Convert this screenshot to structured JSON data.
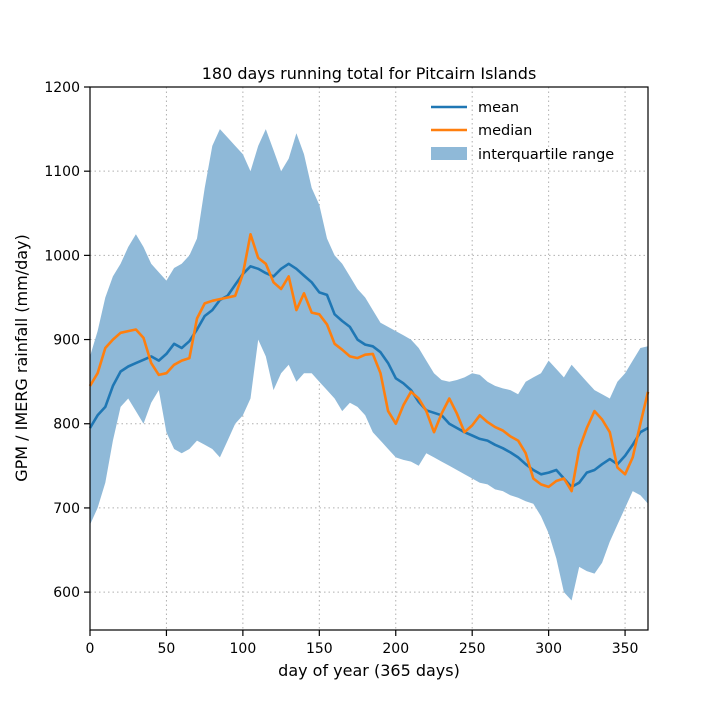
{
  "chart_data": {
    "type": "line",
    "title": "180 days running total for Pitcairn Islands",
    "xlabel": "day of year (365 days)",
    "ylabel": "GPM / IMERG rainfall (mm/day)",
    "xlim": [
      0,
      365
    ],
    "ylim": [
      555,
      1200
    ],
    "xticks": [
      0,
      50,
      100,
      150,
      200,
      250,
      300,
      350
    ],
    "yticks": [
      600,
      700,
      800,
      900,
      1000,
      1100,
      1200
    ],
    "grid": true,
    "legend_position": "top-right",
    "colors": {
      "mean": "#1f77b4",
      "median": "#ff7f0e",
      "iqr": "#8fb9d8",
      "grid": "#b0b0b0"
    },
    "series": [
      {
        "name": "mean",
        "kind": "line",
        "x": [
          0,
          5,
          10,
          15,
          20,
          25,
          30,
          35,
          40,
          45,
          50,
          55,
          60,
          65,
          70,
          75,
          80,
          85,
          90,
          95,
          100,
          105,
          110,
          115,
          120,
          125,
          130,
          135,
          140,
          145,
          150,
          155,
          160,
          165,
          170,
          175,
          180,
          185,
          190,
          195,
          200,
          205,
          210,
          215,
          220,
          225,
          230,
          235,
          240,
          245,
          250,
          255,
          260,
          265,
          270,
          275,
          280,
          285,
          290,
          295,
          300,
          305,
          310,
          315,
          320,
          325,
          330,
          335,
          340,
          345,
          350,
          355,
          360,
          365
        ],
        "values": [
          795,
          810,
          820,
          845,
          862,
          868,
          872,
          876,
          880,
          875,
          883,
          895,
          890,
          898,
          912,
          928,
          935,
          947,
          952,
          965,
          978,
          987,
          984,
          979,
          975,
          984,
          990,
          984,
          976,
          968,
          956,
          953,
          930,
          922,
          915,
          900,
          894,
          892,
          885,
          872,
          854,
          848,
          840,
          826,
          816,
          813,
          810,
          800,
          795,
          790,
          786,
          782,
          780,
          775,
          771,
          766,
          760,
          752,
          745,
          740,
          742,
          745,
          735,
          725,
          730,
          742,
          745,
          752,
          758,
          752,
          762,
          775,
          790,
          795
        ]
      },
      {
        "name": "median",
        "kind": "line",
        "x": [
          0,
          5,
          10,
          15,
          20,
          25,
          30,
          35,
          40,
          45,
          50,
          55,
          60,
          65,
          70,
          75,
          80,
          85,
          90,
          95,
          100,
          105,
          110,
          115,
          120,
          125,
          130,
          135,
          140,
          145,
          150,
          155,
          160,
          165,
          170,
          175,
          180,
          185,
          190,
          195,
          200,
          205,
          210,
          215,
          220,
          225,
          230,
          235,
          240,
          245,
          250,
          255,
          260,
          265,
          270,
          275,
          280,
          285,
          290,
          295,
          300,
          305,
          310,
          315,
          320,
          325,
          330,
          335,
          340,
          345,
          350,
          355,
          360,
          365
        ],
        "values": [
          845,
          860,
          890,
          900,
          908,
          910,
          912,
          902,
          872,
          858,
          860,
          870,
          875,
          878,
          925,
          943,
          946,
          948,
          950,
          952,
          978,
          1025,
          997,
          990,
          968,
          960,
          975,
          935,
          955,
          932,
          930,
          918,
          895,
          888,
          880,
          878,
          882,
          883,
          860,
          815,
          800,
          822,
          838,
          830,
          815,
          790,
          812,
          830,
          812,
          790,
          798,
          810,
          802,
          796,
          792,
          785,
          780,
          765,
          735,
          728,
          725,
          732,
          735,
          720,
          770,
          795,
          815,
          805,
          790,
          748,
          740,
          760,
          800,
          838
        ]
      },
      {
        "name": "interquartile range",
        "kind": "band",
        "x": [
          0,
          5,
          10,
          15,
          20,
          25,
          30,
          35,
          40,
          45,
          50,
          55,
          60,
          65,
          70,
          75,
          80,
          85,
          90,
          95,
          100,
          105,
          110,
          115,
          120,
          125,
          130,
          135,
          140,
          145,
          150,
          155,
          160,
          165,
          170,
          175,
          180,
          185,
          190,
          195,
          200,
          205,
          210,
          215,
          220,
          225,
          230,
          235,
          240,
          245,
          250,
          255,
          260,
          265,
          270,
          275,
          280,
          285,
          290,
          295,
          300,
          305,
          310,
          315,
          320,
          325,
          330,
          335,
          340,
          345,
          350,
          355,
          360,
          365
        ],
        "lower": [
          680,
          700,
          730,
          780,
          820,
          830,
          815,
          800,
          825,
          840,
          790,
          770,
          765,
          770,
          780,
          775,
          770,
          760,
          780,
          800,
          810,
          830,
          900,
          880,
          840,
          860,
          870,
          850,
          860,
          860,
          850,
          840,
          830,
          815,
          825,
          820,
          810,
          790,
          780,
          770,
          760,
          757,
          755,
          750,
          765,
          760,
          755,
          750,
          745,
          740,
          735,
          730,
          728,
          722,
          720,
          715,
          712,
          708,
          705,
          690,
          670,
          640,
          600,
          590,
          630,
          625,
          622,
          635,
          660,
          680,
          700,
          720,
          715,
          705
        ],
        "upper": [
          880,
          910,
          950,
          975,
          990,
          1010,
          1025,
          1010,
          990,
          980,
          970,
          985,
          990,
          1000,
          1020,
          1080,
          1130,
          1150,
          1140,
          1130,
          1120,
          1100,
          1130,
          1150,
          1125,
          1100,
          1115,
          1145,
          1120,
          1080,
          1060,
          1020,
          1000,
          990,
          975,
          960,
          950,
          935,
          920,
          915,
          910,
          905,
          900,
          890,
          875,
          860,
          852,
          850,
          852,
          855,
          860,
          858,
          850,
          845,
          842,
          840,
          835,
          850,
          855,
          860,
          875,
          865,
          855,
          870,
          860,
          850,
          840,
          835,
          830,
          850,
          860,
          875,
          890,
          892
        ]
      }
    ]
  }
}
